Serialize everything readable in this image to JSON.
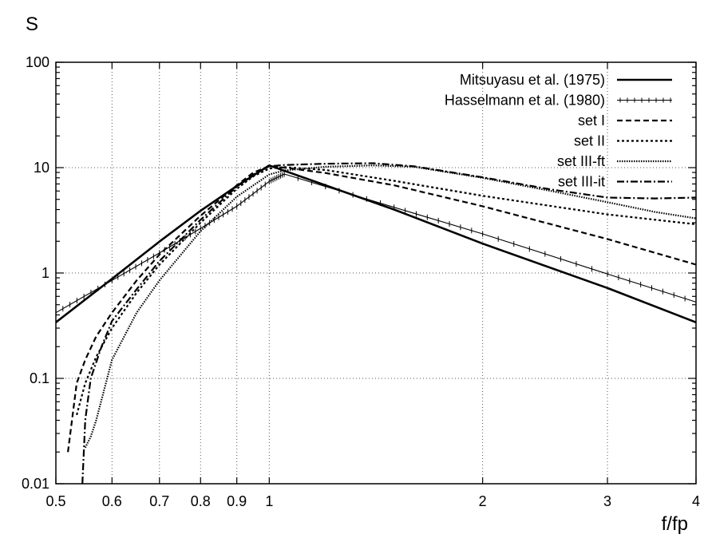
{
  "chart_data": {
    "type": "line",
    "xlabel": "f/fp",
    "ylabel": "S",
    "xscale": "log",
    "yscale": "log",
    "xlim": [
      0.5,
      4
    ],
    "ylim": [
      0.01,
      100
    ],
    "xticks": [
      0.5,
      0.6,
      0.7,
      0.8,
      0.9,
      1,
      2,
      3,
      4
    ],
    "xtick_labels": [
      "0.5",
      "0.6",
      "0.7",
      "0.8",
      "0.9",
      "1",
      "2",
      "3",
      "4"
    ],
    "yticks": [
      0.01,
      0.1,
      1,
      10,
      100
    ],
    "ytick_labels": [
      "0.01",
      "0.1",
      "1",
      "10",
      "100"
    ],
    "grid": true,
    "legend_position": "top-right",
    "series": [
      {
        "name": "Mitsuyasu et al. (1975)",
        "style": "solid-thick",
        "x": [
          0.5,
          0.6,
          0.7,
          0.8,
          0.9,
          1.0,
          1.5,
          2.0,
          3.0,
          4.0
        ],
        "y": [
          0.34,
          0.88,
          1.99,
          3.9,
          6.7,
          10.5,
          4.0,
          1.9,
          0.72,
          0.34
        ]
      },
      {
        "name": "Hasselmann et al. (1980)",
        "style": "solid-thin-markers",
        "x": [
          0.5,
          0.6,
          0.7,
          0.8,
          0.9,
          1.0,
          1.05,
          1.5,
          2.0,
          3.0,
          4.0
        ],
        "y": [
          0.42,
          0.85,
          1.55,
          2.65,
          4.3,
          7.4,
          8.7,
          4.2,
          2.35,
          0.98,
          0.53
        ]
      },
      {
        "name": "set I",
        "style": "dashed",
        "x": [
          0.52,
          0.535,
          0.55,
          0.57,
          0.6,
          0.65,
          0.7,
          0.8,
          0.9,
          0.95,
          1.0,
          1.05,
          1.2,
          1.5,
          2.0,
          3.0,
          4.0
        ],
        "y": [
          0.02,
          0.09,
          0.15,
          0.25,
          0.42,
          0.85,
          1.5,
          3.5,
          6.8,
          9.0,
          10.3,
          10.0,
          8.9,
          6.8,
          4.3,
          2.1,
          1.2
        ]
      },
      {
        "name": "set II",
        "style": "dotted-short",
        "x": [
          0.535,
          0.55,
          0.57,
          0.6,
          0.65,
          0.7,
          0.8,
          0.9,
          0.95,
          1.0,
          1.05,
          1.2,
          1.5,
          2.0,
          3.0,
          4.0
        ],
        "y": [
          0.045,
          0.09,
          0.16,
          0.3,
          0.65,
          1.2,
          3.0,
          6.3,
          8.3,
          9.8,
          10.1,
          9.5,
          7.5,
          5.4,
          3.6,
          2.9
        ]
      },
      {
        "name": "set III-ft",
        "style": "dotted-dense",
        "x": [
          0.55,
          0.56,
          0.57,
          0.6,
          0.65,
          0.7,
          0.8,
          0.9,
          1.0,
          1.05,
          1.2,
          1.4,
          1.6,
          2.0,
          2.5,
          3.0,
          3.5,
          4.0
        ],
        "y": [
          0.022,
          0.028,
          0.04,
          0.15,
          0.42,
          0.85,
          2.5,
          5.3,
          8.6,
          9.4,
          10.2,
          10.5,
          10.2,
          8.0,
          6.0,
          4.7,
          3.8,
          3.3
        ]
      },
      {
        "name": "set III-it",
        "style": "dash-dot",
        "x": [
          0.545,
          0.55,
          0.56,
          0.58,
          0.6,
          0.65,
          0.7,
          0.8,
          0.9,
          0.95,
          1.0,
          1.05,
          1.2,
          1.4,
          1.6,
          2.0,
          2.5,
          3.0,
          3.5,
          4.0
        ],
        "y": [
          0.01,
          0.04,
          0.1,
          0.2,
          0.35,
          0.7,
          1.3,
          3.2,
          6.6,
          8.6,
          10.3,
          10.6,
          10.9,
          11.0,
          10.3,
          8.1,
          6.2,
          5.2,
          5.1,
          5.2
        ]
      }
    ]
  }
}
